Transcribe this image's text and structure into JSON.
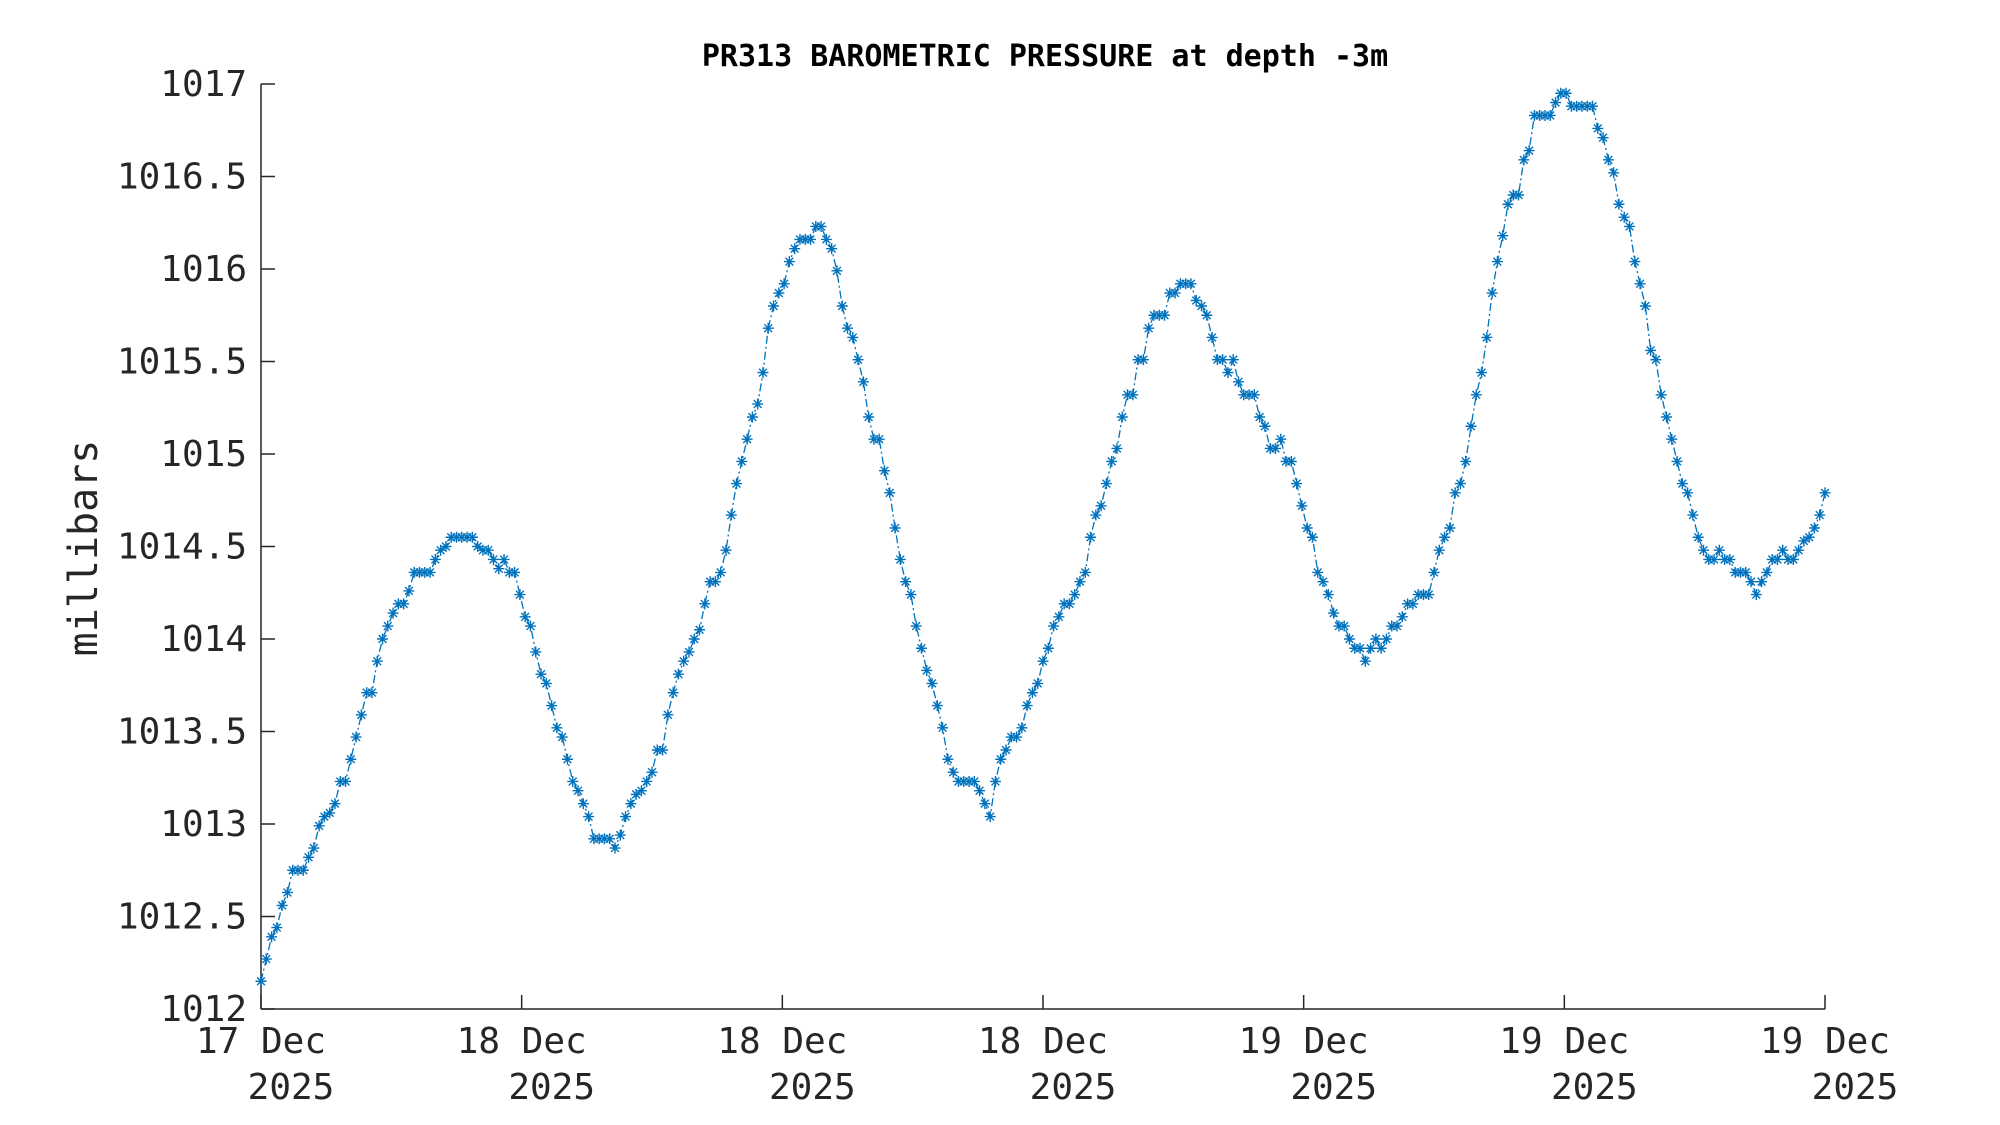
{
  "chart_data": {
    "type": "line",
    "title": "PR313 BAROMETRIC PRESSURE at depth -3m",
    "xlabel": "",
    "ylabel": "millibars",
    "ylim": [
      1012,
      1017
    ],
    "yticks": [
      1012,
      1012.5,
      1013,
      1013.5,
      1014,
      1014.5,
      1015,
      1015.5,
      1016,
      1016.5,
      1017
    ],
    "ytick_labels": [
      "1012",
      "1012.5",
      "1013",
      "1013.5",
      "1014",
      "1014.5",
      "1015",
      "1015.5",
      "1016",
      "1016.5",
      "1017"
    ],
    "xtick_labels": [
      {
        "line1": "17 Dec",
        "line2": "2025"
      },
      {
        "line1": "18 Dec",
        "line2": "2025"
      },
      {
        "line1": "18 Dec",
        "line2": "2025"
      },
      {
        "line1": "18 Dec",
        "line2": "2025"
      },
      {
        "line1": "19 Dec",
        "line2": "2025"
      },
      {
        "line1": "19 Dec",
        "line2": "2025"
      },
      {
        "line1": "19 Dec",
        "line2": "2025"
      }
    ],
    "grid": false,
    "marker": "asterisk",
    "line_style": "dash-dot",
    "series_color": "#0072BD",
    "series": [
      {
        "values": [
          1012.15,
          1012.27,
          1012.39,
          1012.44,
          1012.56,
          1012.63,
          1012.75,
          1012.75,
          1012.75,
          1012.82,
          1012.87,
          1012.99,
          1013.04,
          1013.06,
          1013.11,
          1013.23,
          1013.23,
          1013.35,
          1013.47,
          1013.59,
          1013.71,
          1013.71,
          1013.88,
          1014.0,
          1014.07,
          1014.14,
          1014.19,
          1014.19,
          1014.26,
          1014.36,
          1014.36,
          1014.36,
          1014.36,
          1014.43,
          1014.48,
          1014.5,
          1014.55,
          1014.55,
          1014.55,
          1014.55,
          1014.55,
          1014.5,
          1014.48,
          1014.48,
          1014.43,
          1014.38,
          1014.43,
          1014.36,
          1014.36,
          1014.24,
          1014.12,
          1014.07,
          1013.93,
          1013.81,
          1013.76,
          1013.64,
          1013.52,
          1013.47,
          1013.35,
          1013.23,
          1013.18,
          1013.11,
          1013.04,
          1012.92,
          1012.92,
          1012.92,
          1012.92,
          1012.87,
          1012.94,
          1013.04,
          1013.11,
          1013.16,
          1013.18,
          1013.23,
          1013.28,
          1013.4,
          1013.4,
          1013.59,
          1013.71,
          1013.81,
          1013.88,
          1013.93,
          1014.0,
          1014.05,
          1014.19,
          1014.31,
          1014.31,
          1014.36,
          1014.48,
          1014.67,
          1014.84,
          1014.96,
          1015.08,
          1015.2,
          1015.27,
          1015.44,
          1015.68,
          1015.8,
          1015.87,
          1015.92,
          1016.04,
          1016.11,
          1016.16,
          1016.16,
          1016.16,
          1016.23,
          1016.23,
          1016.16,
          1016.11,
          1015.99,
          1015.8,
          1015.68,
          1015.63,
          1015.51,
          1015.39,
          1015.2,
          1015.08,
          1015.08,
          1014.91,
          1014.79,
          1014.6,
          1014.43,
          1014.31,
          1014.24,
          1014.07,
          1013.95,
          1013.83,
          1013.76,
          1013.64,
          1013.52,
          1013.35,
          1013.28,
          1013.23,
          1013.23,
          1013.23,
          1013.23,
          1013.18,
          1013.11,
          1013.04,
          1013.23,
          1013.35,
          1013.4,
          1013.47,
          1013.47,
          1013.52,
          1013.64,
          1013.71,
          1013.76,
          1013.88,
          1013.95,
          1014.07,
          1014.12,
          1014.19,
          1014.19,
          1014.24,
          1014.31,
          1014.36,
          1014.55,
          1014.67,
          1014.72,
          1014.84,
          1014.96,
          1015.03,
          1015.2,
          1015.32,
          1015.32,
          1015.51,
          1015.51,
          1015.68,
          1015.75,
          1015.75,
          1015.75,
          1015.87,
          1015.87,
          1015.92,
          1015.92,
          1015.92,
          1015.83,
          1015.8,
          1015.75,
          1015.63,
          1015.51,
          1015.51,
          1015.44,
          1015.51,
          1015.39,
          1015.32,
          1015.32,
          1015.32,
          1015.2,
          1015.15,
          1015.03,
          1015.03,
          1015.08,
          1014.96,
          1014.96,
          1014.84,
          1014.72,
          1014.6,
          1014.55,
          1014.36,
          1014.31,
          1014.24,
          1014.14,
          1014.07,
          1014.07,
          1014.0,
          1013.95,
          1013.95,
          1013.88,
          1013.95,
          1014.0,
          1013.95,
          1014.0,
          1014.07,
          1014.07,
          1014.12,
          1014.19,
          1014.19,
          1014.24,
          1014.24,
          1014.24,
          1014.36,
          1014.48,
          1014.55,
          1014.6,
          1014.79,
          1014.84,
          1014.96,
          1015.15,
          1015.32,
          1015.44,
          1015.63,
          1015.87,
          1016.04,
          1016.18,
          1016.35,
          1016.4,
          1016.4,
          1016.59,
          1016.64,
          1016.83,
          1016.83,
          1016.83,
          1016.83,
          1016.9,
          1016.95,
          1016.95,
          1016.88,
          1016.88,
          1016.88,
          1016.88,
          1016.88,
          1016.76,
          1016.71,
          1016.59,
          1016.52,
          1016.35,
          1016.28,
          1016.23,
          1016.04,
          1015.92,
          1015.8,
          1015.56,
          1015.51,
          1015.32,
          1015.2,
          1015.08,
          1014.96,
          1014.84,
          1014.79,
          1014.67,
          1014.55,
          1014.48,
          1014.43,
          1014.43,
          1014.48,
          1014.43,
          1014.43,
          1014.36,
          1014.36,
          1014.36,
          1014.31,
          1014.24,
          1014.31,
          1014.36,
          1014.43,
          1014.43,
          1014.48,
          1014.43,
          1014.43,
          1014.48,
          1014.53,
          1014.55,
          1014.6,
          1014.67,
          1014.79
        ]
      }
    ]
  }
}
